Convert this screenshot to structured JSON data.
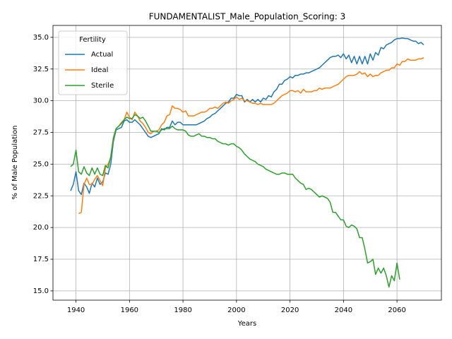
{
  "chart_data": {
    "type": "line",
    "title": "FUNDAMENTALIST_Male_Population_Scoring: 3",
    "xlabel": "Years",
    "ylabel": "% of Male Population",
    "legend_title": "Fertility",
    "legend": "upper left",
    "grid": true,
    "x": [
      1938,
      1939,
      1940,
      1941,
      1942,
      1943,
      1944,
      1945,
      1946,
      1947,
      1948,
      1949,
      1950,
      1951,
      1952,
      1953,
      1954,
      1955,
      1956,
      1957,
      1958,
      1959,
      1960,
      1961,
      1962,
      1963,
      1964,
      1965,
      1966,
      1967,
      1968,
      1969,
      1970,
      1971,
      1972,
      1973,
      1974,
      1975,
      1976,
      1977,
      1978,
      1979,
      1980,
      1981,
      1982,
      1983,
      1984,
      1985,
      1986,
      1987,
      1988,
      1989,
      1990,
      1991,
      1992,
      1993,
      1994,
      1995,
      1996,
      1997,
      1998,
      1999,
      2000,
      2001,
      2002,
      2003,
      2004,
      2005,
      2006,
      2007,
      2008,
      2009,
      2010,
      2011,
      2012,
      2013,
      2014,
      2015,
      2016,
      2017,
      2018,
      2019,
      2020,
      2021,
      2022,
      2023,
      2024,
      2025,
      2026,
      2027,
      2028,
      2029,
      2030,
      2031,
      2032,
      2033,
      2034,
      2035,
      2036,
      2037,
      2038,
      2039,
      2040,
      2041,
      2042,
      2043,
      2044,
      2045,
      2046,
      2047,
      2048,
      2049,
      2050,
      2051,
      2052,
      2053,
      2054,
      2055,
      2056,
      2057,
      2058,
      2059,
      2060,
      2061,
      2062,
      2063,
      2064,
      2065,
      2066,
      2067,
      2068,
      2069,
      2070
    ],
    "series": [
      {
        "name": "Actual",
        "color": "#1f77b4",
        "values": [
          22.9,
          23.4,
          24.4,
          22.9,
          22.6,
          23.5,
          23.2,
          22.7,
          23.5,
          23.2,
          23.9,
          23.4,
          23.6,
          24.3,
          24.2,
          25.0,
          26.8,
          27.7,
          27.8,
          27.9,
          28.4,
          28.5,
          28.3,
          28.3,
          28.5,
          28.3,
          28.1,
          27.8,
          27.5,
          27.2,
          27.1,
          27.2,
          27.3,
          27.4,
          27.8,
          27.7,
          27.9,
          27.9,
          28.4,
          28.1,
          28.3,
          28.3,
          28.1,
          28.1,
          28.1,
          28.1,
          28.1,
          28.1,
          28.2,
          28.3,
          28.4,
          28.6,
          28.7,
          28.9,
          29.0,
          29.2,
          29.4,
          29.6,
          29.8,
          29.9,
          30.2,
          30.2,
          30.5,
          30.4,
          30.4,
          29.9,
          30.1,
          29.9,
          30.1,
          29.9,
          30.1,
          29.9,
          30.2,
          30.1,
          30.4,
          30.3,
          30.7,
          30.9,
          31.3,
          31.3,
          31.6,
          31.7,
          31.9,
          31.8,
          32.0,
          32.0,
          32.1,
          32.1,
          32.2,
          32.2,
          32.3,
          32.4,
          32.5,
          32.6,
          32.8,
          33.0,
          33.2,
          33.4,
          33.5,
          33.5,
          33.6,
          33.4,
          33.7,
          33.3,
          33.6,
          33.0,
          33.5,
          32.9,
          33.5,
          32.9,
          33.5,
          32.9,
          33.7,
          33.2,
          33.8,
          33.6,
          34.2,
          34.1,
          34.4,
          34.5,
          34.6,
          34.8,
          34.9,
          34.9,
          34.95,
          34.9,
          34.9,
          34.8,
          34.7,
          34.7,
          34.5,
          34.6,
          34.4
        ]
      },
      {
        "name": "Ideal",
        "color": "#ff7f0e",
        "values": [
          null,
          null,
          null,
          21.1,
          21.2,
          23.4,
          23.9,
          23.4,
          23.4,
          23.8,
          24.1,
          23.7,
          23.3,
          24.7,
          25.0,
          25.5,
          27.0,
          27.8,
          28.0,
          28.3,
          28.5,
          29.1,
          28.7,
          28.5,
          29.1,
          28.8,
          28.4,
          28.2,
          27.9,
          27.5,
          27.4,
          27.6,
          27.6,
          27.7,
          28.1,
          28.3,
          28.8,
          28.9,
          29.6,
          29.4,
          29.4,
          29.3,
          29.1,
          29.2,
          28.8,
          28.8,
          28.8,
          28.9,
          29.0,
          29.1,
          29.1,
          29.2,
          29.4,
          29.4,
          29.5,
          29.4,
          29.6,
          29.8,
          29.9,
          29.8,
          30.0,
          30.1,
          30.3,
          30.1,
          30.2,
          30.0,
          30.0,
          29.9,
          29.8,
          29.8,
          29.7,
          29.8,
          29.7,
          29.7,
          29.7,
          29.7,
          29.8,
          30.0,
          30.2,
          30.4,
          30.5,
          30.6,
          30.8,
          30.8,
          30.7,
          30.8,
          30.6,
          30.9,
          30.7,
          30.7,
          30.7,
          30.8,
          30.8,
          31.0,
          30.9,
          31.0,
          31.0,
          31.0,
          31.1,
          31.2,
          31.3,
          31.5,
          31.7,
          31.9,
          32.0,
          32.0,
          32.0,
          32.1,
          32.3,
          32.1,
          32.2,
          31.9,
          32.1,
          31.9,
          32.0,
          32.0,
          32.2,
          32.3,
          32.4,
          32.4,
          32.6,
          32.6,
          32.9,
          32.8,
          33.1,
          33.1,
          33.3,
          33.2,
          33.2,
          33.2,
          33.3,
          33.3,
          33.4
        ]
      },
      {
        "name": "Sterile",
        "color": "#2ca02c",
        "values": [
          24.8,
          25.0,
          26.1,
          24.4,
          24.2,
          24.8,
          24.3,
          24.1,
          24.7,
          24.2,
          24.7,
          24.2,
          24.1,
          24.9,
          24.7,
          25.6,
          27.1,
          27.8,
          28.0,
          28.2,
          28.5,
          28.7,
          28.6,
          28.6,
          28.9,
          28.8,
          28.6,
          28.7,
          28.4,
          28.0,
          27.6,
          27.6,
          27.6,
          27.5,
          27.7,
          27.8,
          27.8,
          27.8,
          28.0,
          27.8,
          27.7,
          27.7,
          27.7,
          27.6,
          27.3,
          27.2,
          27.2,
          27.3,
          27.4,
          27.2,
          27.2,
          27.1,
          27.1,
          27.0,
          27.0,
          26.8,
          26.7,
          26.6,
          26.6,
          26.5,
          26.6,
          26.6,
          26.4,
          26.3,
          26.1,
          25.8,
          25.6,
          25.4,
          25.3,
          25.2,
          25.0,
          24.9,
          24.8,
          24.6,
          24.5,
          24.4,
          24.3,
          24.2,
          24.2,
          24.3,
          24.3,
          24.2,
          24.2,
          24.2,
          23.9,
          23.7,
          23.5,
          23.4,
          23.0,
          23.1,
          23.0,
          22.8,
          22.6,
          22.4,
          22.5,
          22.4,
          22.3,
          22.0,
          21.2,
          21.2,
          20.9,
          20.6,
          20.6,
          20.1,
          20.0,
          20.2,
          20.1,
          19.9,
          19.2,
          19.2,
          18.3,
          17.2,
          17.3,
          17.5,
          16.3,
          16.8,
          16.4,
          16.8,
          16.2,
          15.3,
          16.2,
          15.8,
          17.2,
          15.9,
          null,
          null,
          null,
          null,
          null,
          null,
          null,
          null,
          null
        ]
      }
    ],
    "xlim": [
      1931.4,
      2076.6
    ],
    "xticks": [
      1940,
      1960,
      1980,
      2000,
      2020,
      2040,
      2060
    ],
    "ylim": [
      14.27,
      35.94
    ],
    "yticks": [
      {
        "value": 15,
        "label": "15.0"
      },
      17.5,
      {
        "value": 20,
        "label": "20.0"
      },
      22.5,
      {
        "value": 25,
        "label": "25.0"
      },
      27.5,
      {
        "value": 30,
        "label": "30.0"
      },
      32.5,
      {
        "value": 35,
        "label": "35.0"
      }
    ]
  }
}
